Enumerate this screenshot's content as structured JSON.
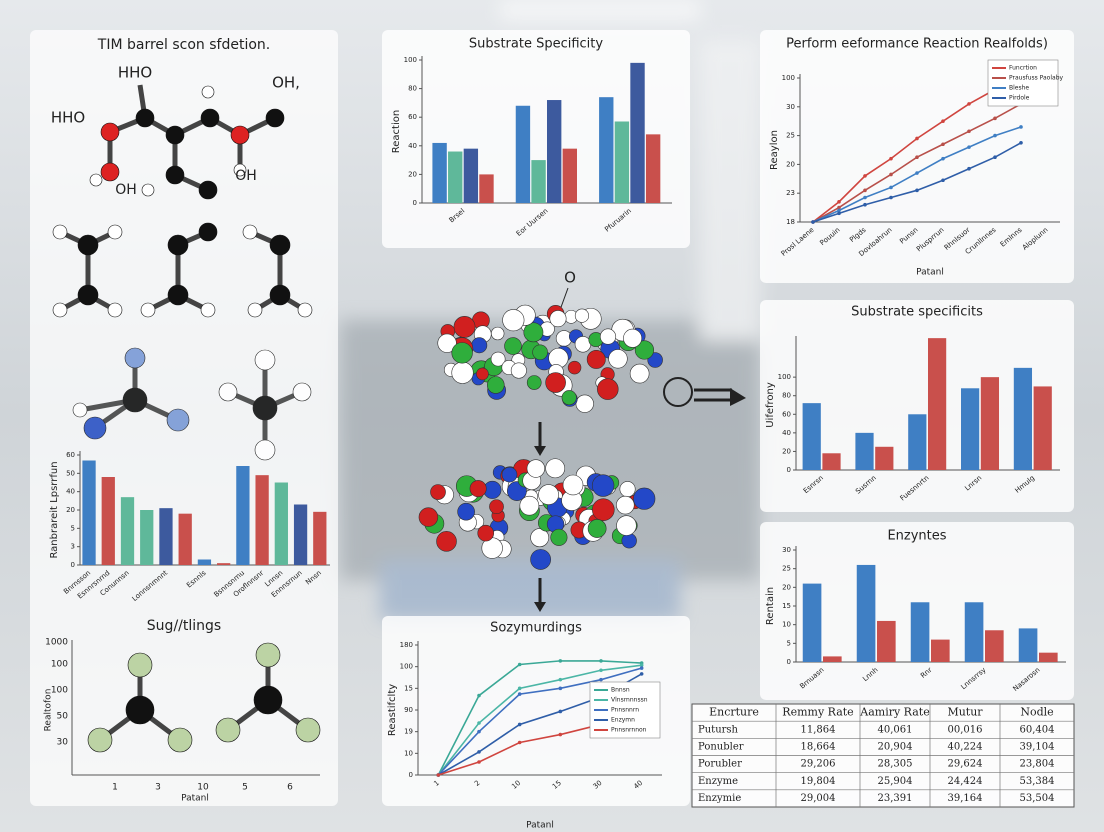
{
  "molecules": {
    "title": "TIM barrel scon sfdetion.",
    "labels": [
      "HHO",
      "HHO",
      "OH,",
      "OH",
      "OH"
    ],
    "center_label": "O"
  },
  "sugtlings": {
    "title": "Sug//tlings",
    "y_label": "Realtofon",
    "y_ticks": [
      "1000",
      "100",
      "100",
      "50",
      "30"
    ],
    "x_ticks": [
      "1",
      "3",
      "10",
      "5",
      "6"
    ],
    "x_label": "Patanl"
  },
  "chart_data": [
    {
      "type": "bar",
      "title": "Substrate Specificity",
      "y_label": "Reaction",
      "categories": [
        "Brsel",
        "Eor Uursen",
        "Pfuruarin"
      ],
      "series": [
        {
          "color": "#3f7fc4",
          "values": [
            42,
            68,
            74
          ]
        },
        {
          "color": "#5fb89a",
          "values": [
            36,
            30,
            57
          ]
        },
        {
          "color": "#3d5a9e",
          "values": [
            38,
            72,
            98
          ]
        },
        {
          "color": "#c9504c",
          "values": [
            20,
            38,
            48
          ]
        }
      ],
      "ylim": [
        0,
        100
      ],
      "yticks": [
        0,
        20,
        40,
        60,
        80,
        100
      ],
      "grid": false
    },
    {
      "type": "line",
      "title": "Perform eeformance Reaction Realfolds)",
      "y_label": "Reaylon",
      "x_label": "Patanl",
      "categories": [
        "Prosl Laene",
        "Pouuin",
        "Plgds",
        "Dovloahrun",
        "Punsn",
        "Plusprrun",
        "Rhnlsuor",
        "Crunllnnes",
        "Emlnns",
        "Aloplunn"
      ],
      "series": [
        {
          "name": "Funcrtion",
          "color": "#d0453f",
          "values": [
            0,
            14,
            32,
            44,
            58,
            70,
            82,
            92,
            100,
            null
          ]
        },
        {
          "name": "Prausfuss Paolaby",
          "color": "#b8504a",
          "values": [
            0,
            10,
            22,
            33,
            45,
            54,
            63,
            72,
            82,
            null
          ]
        },
        {
          "name": "Bleshe",
          "color": "#3f7fc4",
          "values": [
            0,
            8,
            17,
            24,
            34,
            44,
            52,
            60,
            66,
            null
          ]
        },
        {
          "name": "Pirdole",
          "color": "#2f5ea8",
          "values": [
            0,
            6,
            12,
            17,
            22,
            29,
            37,
            45,
            55,
            null
          ]
        }
      ],
      "ylim": [
        0,
        100
      ],
      "yticks": [
        {
          "value": 0,
          "label": "18"
        },
        {
          "value": 20,
          "label": "23"
        },
        {
          "value": 40,
          "label": "20"
        },
        {
          "value": 60,
          "label": "25"
        },
        {
          "value": 80,
          "label": "30"
        },
        100
      ],
      "grid": false,
      "legend": "upper right"
    },
    {
      "type": "bar",
      "title": "Substrate specificits",
      "y_label": "Uifefrony",
      "categories": [
        "Esnrsn",
        "Susrnn",
        "Fuesnnrtn",
        "Lnrsn",
        "Hmulg"
      ],
      "series": [
        {
          "color": "#3f7fc4",
          "values": [
            72,
            40,
            60,
            88,
            110
          ]
        },
        {
          "color": "#c9504c",
          "values": [
            18,
            25,
            142,
            100,
            90
          ]
        }
      ],
      "ylim": [
        0,
        140
      ],
      "yticks": [
        0,
        20,
        40,
        60,
        80,
        100
      ],
      "grid": false
    },
    {
      "type": "bar",
      "title": "Enzyntes",
      "y_label": "Rentain",
      "categories": [
        "Brnuasn",
        "Lnnh",
        "Rnr",
        "Lnnsrrsy",
        "Nasarosn"
      ],
      "series": [
        {
          "color": "#3f7fc4",
          "values": [
            21,
            26,
            16,
            16,
            9
          ]
        },
        {
          "color": "#c9504c",
          "values": [
            1.5,
            11,
            6,
            8.5,
            2.5
          ]
        }
      ],
      "ylim": [
        0,
        30
      ],
      "yticks": [
        0,
        5,
        10,
        15,
        20,
        25,
        30
      ],
      "grid": false
    },
    {
      "type": "bar",
      "y_label": "Ranbrareit Lpsrrfun",
      "categories": [
        "Bnrnsson",
        "Esnnrsnrnd",
        "Conunnsn",
        null,
        "Lonnsnmnnt",
        null,
        "Esnnls",
        null,
        "Bsnnsnrnu",
        "Oroflnnsnr",
        "Lnnsn",
        "Ennnsrnun",
        "Nnsn"
      ],
      "series": [
        {
          "colors": [
            "#3f7fc4",
            "#c9504c",
            "#5fb89a",
            "#5fb89a",
            "#3d5a9e",
            "#c9504c",
            "#3f7fc4",
            "#c9504c",
            "#3f7fc4",
            "#c9504c",
            "#5fb89a",
            "#3d5a9e",
            "#c9504c"
          ],
          "values": [
            57,
            48,
            37,
            30,
            31,
            28,
            3,
            1,
            54,
            49,
            45,
            33,
            29
          ]
        }
      ],
      "ylim": [
        0,
        60
      ],
      "yticks": [
        0,
        {
          "value": 10,
          "label": "3"
        },
        {
          "value": 20,
          "label": "5"
        },
        {
          "value": 30,
          "label": "20"
        },
        40,
        50,
        60
      ],
      "grid": false
    },
    {
      "type": "line",
      "title": "Sozymurdings",
      "y_label": "Reastifclty",
      "x_label": "Patanl",
      "categories": [
        "1",
        "2",
        "10",
        "15",
        "30",
        "40"
      ],
      "series": [
        {
          "name": "Bnnsn",
          "color": "#3aa896",
          "values": [
            0,
            110,
            153,
            158,
            158,
            155
          ]
        },
        {
          "name": "Vlnsrnnnssn",
          "color": "#4bb6a6",
          "values": [
            0,
            72,
            120,
            132,
            145,
            152
          ]
        },
        {
          "name": "Pnnsnnrn",
          "color": "#3f6fc0",
          "values": [
            0,
            60,
            112,
            120,
            132,
            148
          ]
        },
        {
          "name": "Enzymn",
          "color": "#2f5ea8",
          "values": [
            0,
            32,
            70,
            88,
            108,
            140
          ]
        },
        {
          "name": "Pnnsnrnnon",
          "color": "#d0453f",
          "values": [
            0,
            18,
            45,
            56,
            70,
            null
          ]
        }
      ],
      "ylim": [
        0,
        180
      ],
      "yticks": [
        0,
        {
          "value": 30,
          "label": "10"
        },
        {
          "value": 60,
          "label": "19"
        },
        90,
        {
          "value": 120,
          "label": "15"
        },
        {
          "value": 150,
          "label": "100"
        },
        180
      ],
      "grid": false,
      "legend": "center right"
    }
  ],
  "table": {
    "header": [
      "Encrture",
      "Remmy Rate",
      "Aamiry Rate",
      "Mutur",
      "Nodle"
    ],
    "rows": [
      [
        "Putursh",
        "11,864",
        "40,061",
        "00,016",
        "60,404"
      ],
      [
        "Ponubler",
        "18,664",
        "20,904",
        "40,224",
        "39,104"
      ],
      [
        "Porubler",
        "29,206",
        "28,305",
        "29,624",
        "23,804"
      ],
      [
        "Enzyme",
        "19,804",
        "25,904",
        "24,424",
        "53,384"
      ],
      [
        "Enzymie",
        "29,004",
        "23,391",
        "39,164",
        "53,504"
      ]
    ]
  }
}
